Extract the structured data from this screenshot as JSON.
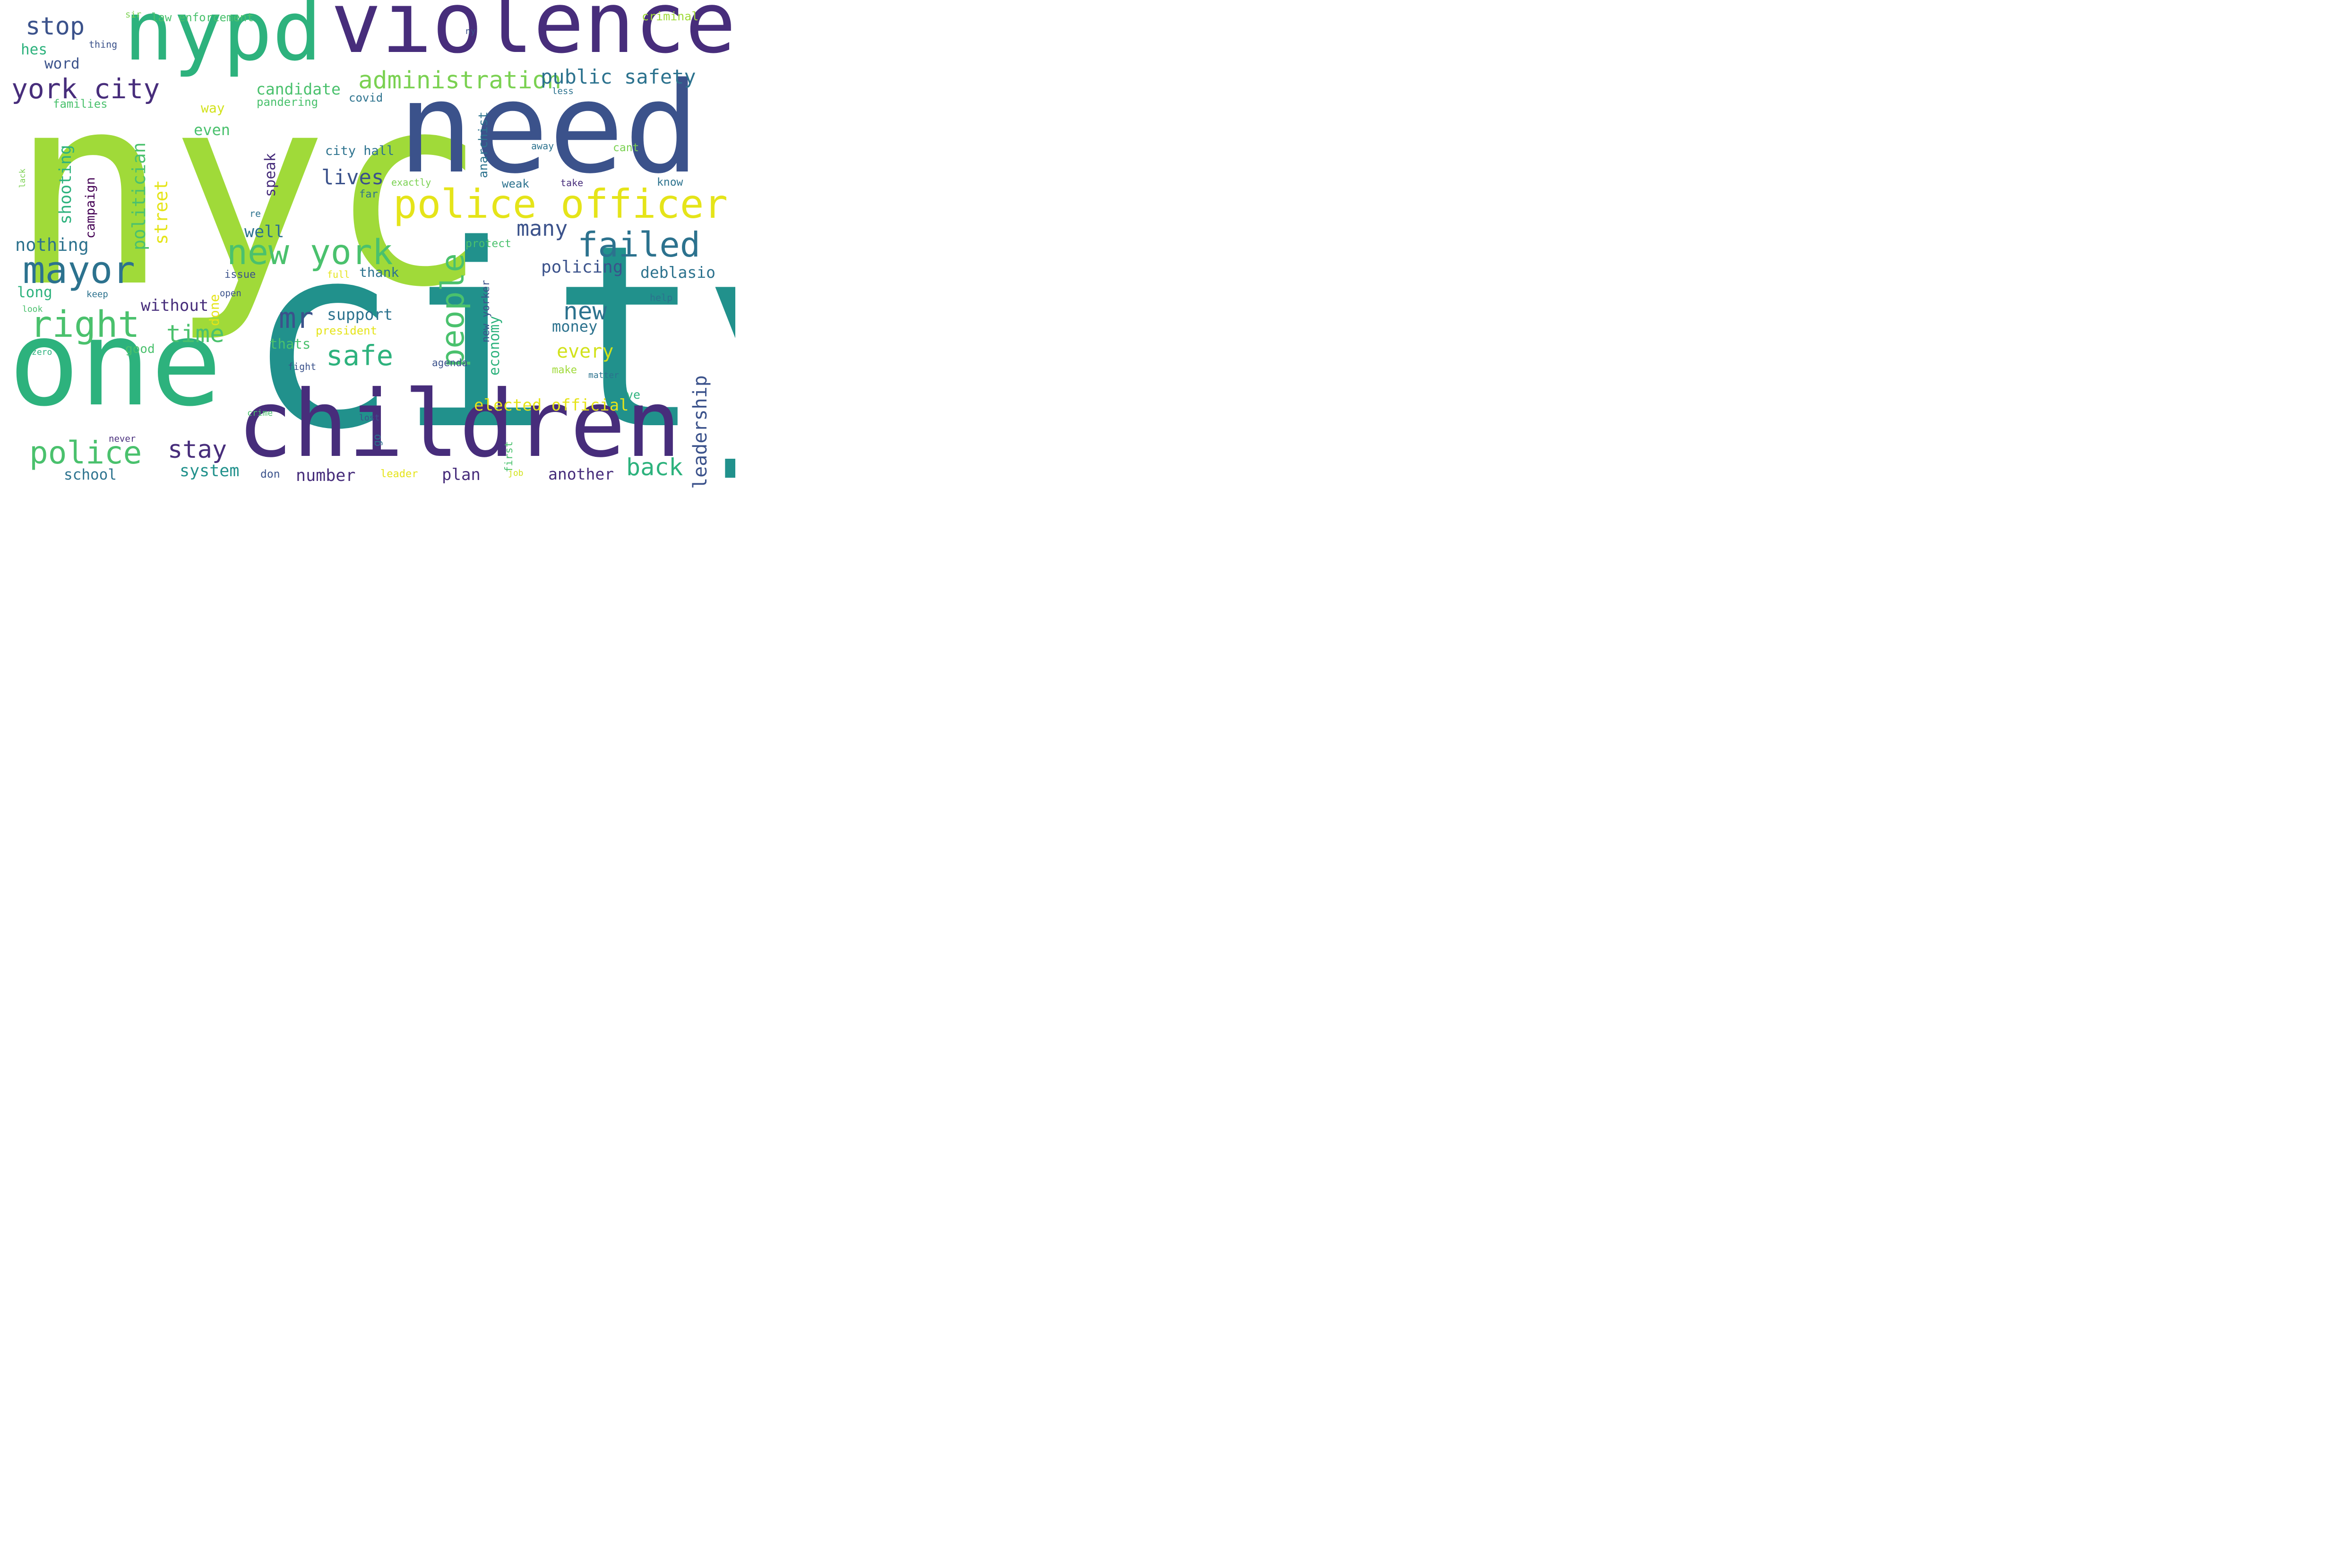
{
  "wordcloud": {
    "words": [
      {
        "text": "nyc",
        "color": "#a0da39"
      },
      {
        "text": "city",
        "color": "#21918c"
      },
      {
        "text": "need",
        "color": "#3b528b"
      },
      {
        "text": "violence",
        "color": "#472d7b"
      },
      {
        "text": "nypd",
        "color": "#2db27d"
      },
      {
        "text": "one",
        "color": "#2db27d"
      },
      {
        "text": "children",
        "color": "#472d7b"
      },
      {
        "text": "police officer",
        "color": "#e5e419"
      },
      {
        "text": "mayor",
        "color": "#2c728e"
      },
      {
        "text": "new york",
        "color": "#4ac16d"
      },
      {
        "text": "failed",
        "color": "#2c728e"
      },
      {
        "text": "right",
        "color": "#4ac16d"
      },
      {
        "text": "police",
        "color": "#4ac16d"
      },
      {
        "text": "people",
        "color": "#4ac16d"
      },
      {
        "text": "york city",
        "color": "#472d7b"
      },
      {
        "text": "administration",
        "color": "#7ad151"
      },
      {
        "text": "stop",
        "color": "#3b528b"
      },
      {
        "text": "mr",
        "color": "#3b528b"
      },
      {
        "text": "public safety",
        "color": "#2c728e"
      },
      {
        "text": "safe",
        "color": "#2db27d"
      },
      {
        "text": "time",
        "color": "#4ac16d"
      },
      {
        "text": "back",
        "color": "#2db27d"
      },
      {
        "text": "new",
        "color": "#2c728e"
      },
      {
        "text": "stay",
        "color": "#472d7b"
      },
      {
        "text": "many",
        "color": "#3b528b"
      },
      {
        "text": "lives",
        "color": "#3b528b"
      },
      {
        "text": "leadership",
        "color": "#3b528b"
      },
      {
        "text": "nothing",
        "color": "#2c728e"
      },
      {
        "text": "policing",
        "color": "#3b528b"
      },
      {
        "text": "deblasio",
        "color": "#2c728e"
      },
      {
        "text": "politician",
        "color": "#4ac16d"
      },
      {
        "text": "every",
        "color": "#d2e21b"
      },
      {
        "text": "elected official",
        "color": "#e5e419"
      },
      {
        "text": "well",
        "color": "#2c728e"
      },
      {
        "text": "number",
        "color": "#472d7b"
      },
      {
        "text": "system",
        "color": "#21918c"
      },
      {
        "text": "another",
        "color": "#472d7b"
      },
      {
        "text": "plan",
        "color": "#472d7b"
      },
      {
        "text": "street",
        "color": "#e5e419"
      },
      {
        "text": "shooting",
        "color": "#2db27d"
      },
      {
        "text": "candidate",
        "color": "#4ac16d"
      },
      {
        "text": "support",
        "color": "#2c728e"
      },
      {
        "text": "money",
        "color": "#2c728e"
      },
      {
        "text": "without",
        "color": "#472d7b"
      },
      {
        "text": "speak",
        "color": "#472d7b"
      },
      {
        "text": "campaign",
        "color": "#440154"
      },
      {
        "text": "economy",
        "color": "#2db27d"
      },
      {
        "text": "even",
        "color": "#4ac16d"
      },
      {
        "text": "school",
        "color": "#2c728e"
      },
      {
        "text": "hes",
        "color": "#2db27d"
      },
      {
        "text": "word",
        "color": "#3b528b"
      },
      {
        "text": "long",
        "color": "#2db27d"
      },
      {
        "text": "thats",
        "color": "#4ac16d"
      },
      {
        "text": "thank",
        "color": "#2c728e"
      },
      {
        "text": "city hall",
        "color": "#2c728e"
      },
      {
        "text": "new yorker",
        "color": "#3b528b"
      },
      {
        "text": "anarchist",
        "color": "#2c728e"
      },
      {
        "text": "law enforcement",
        "color": "#4ac16d"
      },
      {
        "text": "criminal",
        "color": "#a0da39"
      },
      {
        "text": "pandering",
        "color": "#4ac16d"
      },
      {
        "text": "covid",
        "color": "#2c728e"
      },
      {
        "text": "way",
        "color": "#d2e21b"
      },
      {
        "text": "families",
        "color": "#4ac16d"
      },
      {
        "text": "done",
        "color": "#e5e419"
      },
      {
        "text": "president",
        "color": "#e5e419"
      },
      {
        "text": "good",
        "color": "#4ac16d"
      },
      {
        "text": "go",
        "color": "#2c728e"
      },
      {
        "text": "agenda",
        "color": "#3b528b"
      },
      {
        "text": "weak",
        "color": "#2c728e"
      },
      {
        "text": "leader",
        "color": "#e5e419"
      },
      {
        "text": "first",
        "color": "#4ac16d"
      },
      {
        "text": "don",
        "color": "#3b528b"
      },
      {
        "text": "ve",
        "color": "#2db27d"
      },
      {
        "text": "make",
        "color": "#a0da39"
      },
      {
        "text": "far",
        "color": "#2c728e"
      },
      {
        "text": "fight",
        "color": "#3b528b"
      },
      {
        "text": "protect",
        "color": "#4ac16d"
      },
      {
        "text": "know",
        "color": "#2c728e"
      },
      {
        "text": "take",
        "color": "#472d7b"
      },
      {
        "text": "cant",
        "color": "#7ad151"
      },
      {
        "text": "issue",
        "color": "#3b528b"
      },
      {
        "text": "full",
        "color": "#e5e419"
      },
      {
        "text": "keep",
        "color": "#2c728e"
      },
      {
        "text": "open",
        "color": "#3b528b"
      },
      {
        "text": "help",
        "color": "#2c728e"
      },
      {
        "text": "look",
        "color": "#4ac16d"
      },
      {
        "text": "zero",
        "color": "#2db27d"
      },
      {
        "text": "re",
        "color": "#2c728e"
      },
      {
        "text": "exactly",
        "color": "#7ad151"
      },
      {
        "text": "away",
        "color": "#2c728e"
      },
      {
        "text": "less",
        "color": "#2c728e"
      },
      {
        "text": "ny",
        "color": "#3b528b"
      },
      {
        "text": "sir",
        "color": "#7ad151"
      },
      {
        "text": "thing",
        "color": "#3b528b"
      },
      {
        "text": "lack",
        "color": "#7ad151"
      },
      {
        "text": "crime",
        "color": "#4ac16d"
      },
      {
        "text": "lost",
        "color": "#3b528b"
      },
      {
        "text": "never",
        "color": "#472d7b"
      },
      {
        "text": "matter",
        "color": "#2c728e"
      },
      {
        "text": "job",
        "color": "#d2e21b"
      }
    ]
  }
}
